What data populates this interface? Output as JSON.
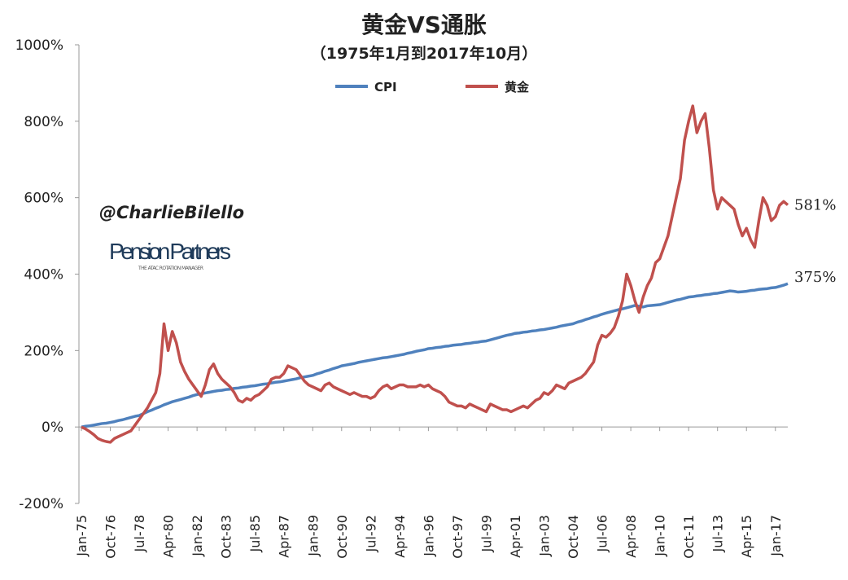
{
  "chart_data": {
    "type": "line",
    "title": "黄金VS通胀",
    "subtitle": "（1975年1月到2017年10月）",
    "annotations": [
      "581%",
      "375%",
      "@CharlieBilello",
      "Pension Partners",
      "THE ATAC ROTATION MANAGER"
    ],
    "x": [
      "Jan-75",
      null,
      null,
      null,
      null,
      null,
      null,
      "Oct-76",
      null,
      null,
      null,
      null,
      null,
      null,
      "Jul-78",
      null,
      null,
      null,
      null,
      null,
      null,
      "Apr-80",
      null,
      null,
      null,
      null,
      null,
      null,
      "Jan-82",
      null,
      null,
      null,
      null,
      null,
      null,
      "Oct-83",
      null,
      null,
      null,
      null,
      null,
      null,
      "Jul-85",
      null,
      null,
      null,
      null,
      null,
      null,
      "Apr-87",
      null,
      null,
      null,
      null,
      null,
      null,
      "Jan-89",
      null,
      null,
      null,
      null,
      null,
      null,
      "Oct-90",
      null,
      null,
      null,
      null,
      null,
      null,
      "Jul-92",
      null,
      null,
      null,
      null,
      null,
      null,
      "Apr-94",
      null,
      null,
      null,
      null,
      null,
      null,
      "Jan-96",
      null,
      null,
      null,
      null,
      null,
      null,
      "Oct-97",
      null,
      null,
      null,
      null,
      null,
      null,
      "Jul-99",
      null,
      null,
      null,
      null,
      null,
      null,
      "Apr-01",
      null,
      null,
      null,
      null,
      null,
      null,
      "Jan-03",
      null,
      null,
      null,
      null,
      null,
      null,
      "Oct-04",
      null,
      null,
      null,
      null,
      null,
      null,
      "Jul-06",
      null,
      null,
      null,
      null,
      null,
      null,
      "Apr-08",
      null,
      null,
      null,
      null,
      null,
      null,
      "Jan-10",
      null,
      null,
      null,
      null,
      null,
      null,
      "Oct-11",
      null,
      null,
      null,
      null,
      null,
      null,
      "Jul-13",
      null,
      null,
      null,
      null,
      null,
      null,
      "Apr-15",
      null,
      null,
      null,
      null,
      null,
      null,
      "Jan-17",
      null,
      null,
      null
    ],
    "series": [
      {
        "name": "CPI",
        "color": "#4f81bd",
        "values": [
          0,
          2,
          3,
          5,
          7,
          9,
          10,
          12,
          14,
          17,
          19,
          22,
          25,
          28,
          30,
          35,
          40,
          44,
          49,
          53,
          58,
          62,
          66,
          69,
          72,
          75,
          78,
          82,
          85,
          87,
          89,
          91,
          93,
          95,
          96,
          98,
          99,
          101,
          102,
          104,
          105,
          107,
          108,
          110,
          112,
          113,
          115,
          117,
          118,
          120,
          122,
          124,
          126,
          129,
          131,
          133,
          135,
          139,
          142,
          146,
          149,
          153,
          156,
          160,
          162,
          164,
          166,
          169,
          171,
          173,
          175,
          177,
          179,
          181,
          182,
          184,
          186,
          188,
          190,
          193,
          195,
          198,
          200,
          202,
          205,
          206,
          208,
          209,
          211,
          212,
          214,
          215,
          216,
          218,
          219,
          221,
          222,
          224,
          225,
          228,
          231,
          234,
          237,
          240,
          242,
          245,
          246,
          248,
          249,
          251,
          252,
          254,
          255,
          257,
          259,
          261,
          264,
          266,
          268,
          270,
          274,
          277,
          281,
          284,
          288,
          291,
          295,
          298,
          301,
          304,
          307,
          309,
          312,
          315,
          318,
          316,
          314,
          317,
          318,
          319,
          320,
          323,
          326,
          329,
          332,
          334,
          337,
          340,
          341,
          343,
          344,
          346,
          347,
          349,
          350,
          352,
          354,
          356,
          355,
          353,
          354,
          355,
          357,
          358,
          360,
          361,
          362,
          364,
          365,
          368,
          371,
          375
        ]
      },
      {
        "name": "黄金",
        "color": "#c0504d",
        "values": [
          0,
          -5,
          -12,
          -20,
          -30,
          -35,
          -38,
          -40,
          -30,
          -25,
          -20,
          -15,
          -10,
          5,
          20,
          35,
          50,
          70,
          90,
          140,
          270,
          200,
          250,
          220,
          170,
          145,
          125,
          110,
          95,
          80,
          110,
          150,
          165,
          140,
          125,
          115,
          105,
          90,
          70,
          65,
          75,
          70,
          80,
          85,
          95,
          105,
          125,
          130,
          130,
          140,
          160,
          155,
          150,
          135,
          120,
          110,
          105,
          100,
          95,
          110,
          115,
          105,
          100,
          95,
          90,
          85,
          90,
          85,
          80,
          80,
          75,
          80,
          95,
          105,
          110,
          100,
          105,
          110,
          110,
          105,
          105,
          105,
          110,
          105,
          110,
          100,
          95,
          90,
          80,
          65,
          60,
          55,
          55,
          50,
          60,
          55,
          50,
          45,
          40,
          60,
          55,
          50,
          45,
          45,
          40,
          45,
          50,
          55,
          50,
          60,
          70,
          75,
          90,
          85,
          95,
          110,
          105,
          100,
          115,
          120,
          125,
          130,
          140,
          155,
          170,
          215,
          240,
          235,
          245,
          260,
          290,
          330,
          400,
          370,
          330,
          300,
          340,
          370,
          390,
          430,
          440,
          470,
          500,
          550,
          600,
          650,
          750,
          800,
          840,
          770,
          800,
          820,
          730,
          620,
          570,
          600,
          590,
          580,
          570,
          530,
          500,
          520,
          490,
          470,
          540,
          600,
          580,
          540,
          550,
          580,
          590,
          581
        ]
      }
    ],
    "ylim": [
      -200,
      1000
    ],
    "yticks": [
      {
        "value": -200,
        "label": "-200%"
      },
      {
        "value": 0,
        "label": "0%"
      },
      {
        "value": 200,
        "label": "200%"
      },
      {
        "value": 400,
        "label": "400%"
      },
      {
        "value": 600,
        "label": "600%"
      },
      {
        "value": 800,
        "label": "800%"
      },
      {
        "value": 1000,
        "label": "1000%"
      }
    ],
    "grid": false
  }
}
